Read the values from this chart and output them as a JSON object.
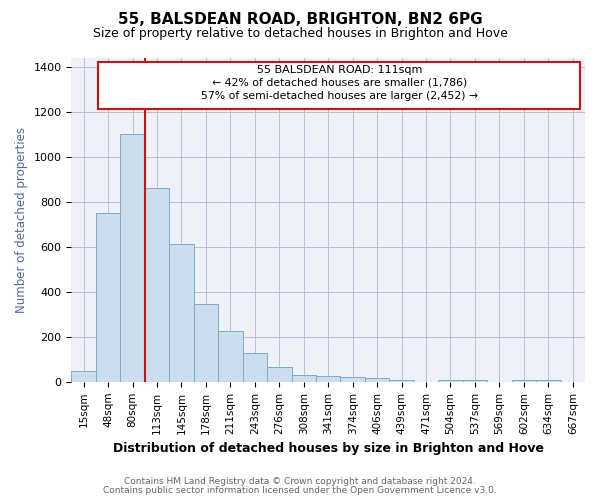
{
  "title1": "55, BALSDEAN ROAD, BRIGHTON, BN2 6PG",
  "title2": "Size of property relative to detached houses in Brighton and Hove",
  "xlabel": "Distribution of detached houses by size in Brighton and Hove",
  "ylabel": "Number of detached properties",
  "bins": [
    "15sqm",
    "48sqm",
    "80sqm",
    "113sqm",
    "145sqm",
    "178sqm",
    "211sqm",
    "243sqm",
    "276sqm",
    "308sqm",
    "341sqm",
    "374sqm",
    "406sqm",
    "439sqm",
    "471sqm",
    "504sqm",
    "537sqm",
    "569sqm",
    "602sqm",
    "634sqm",
    "667sqm"
  ],
  "values": [
    50,
    750,
    1100,
    860,
    610,
    345,
    225,
    130,
    65,
    30,
    25,
    20,
    15,
    10,
    0,
    8,
    8,
    0,
    8,
    8,
    0
  ],
  "bar_color": "#ccdded",
  "bar_edge_color": "#7aabcc",
  "property_line_x": 2.5,
  "property_line_label": "55 BALSDEAN ROAD: 111sqm",
  "pct_smaller": "42%",
  "n_smaller": "1,786",
  "pct_larger": "57%",
  "n_larger": "2,452",
  "annotation_box_color": "#cc1111",
  "ylim": [
    0,
    1440
  ],
  "yticks": [
    0,
    200,
    400,
    600,
    800,
    1000,
    1200,
    1400
  ],
  "footer1": "Contains HM Land Registry data © Crown copyright and database right 2024.",
  "footer2": "Contains public sector information licensed under the Open Government Licence v3.0.",
  "bg_color": "#eef2f8",
  "grid_color": "#b0b8d0"
}
